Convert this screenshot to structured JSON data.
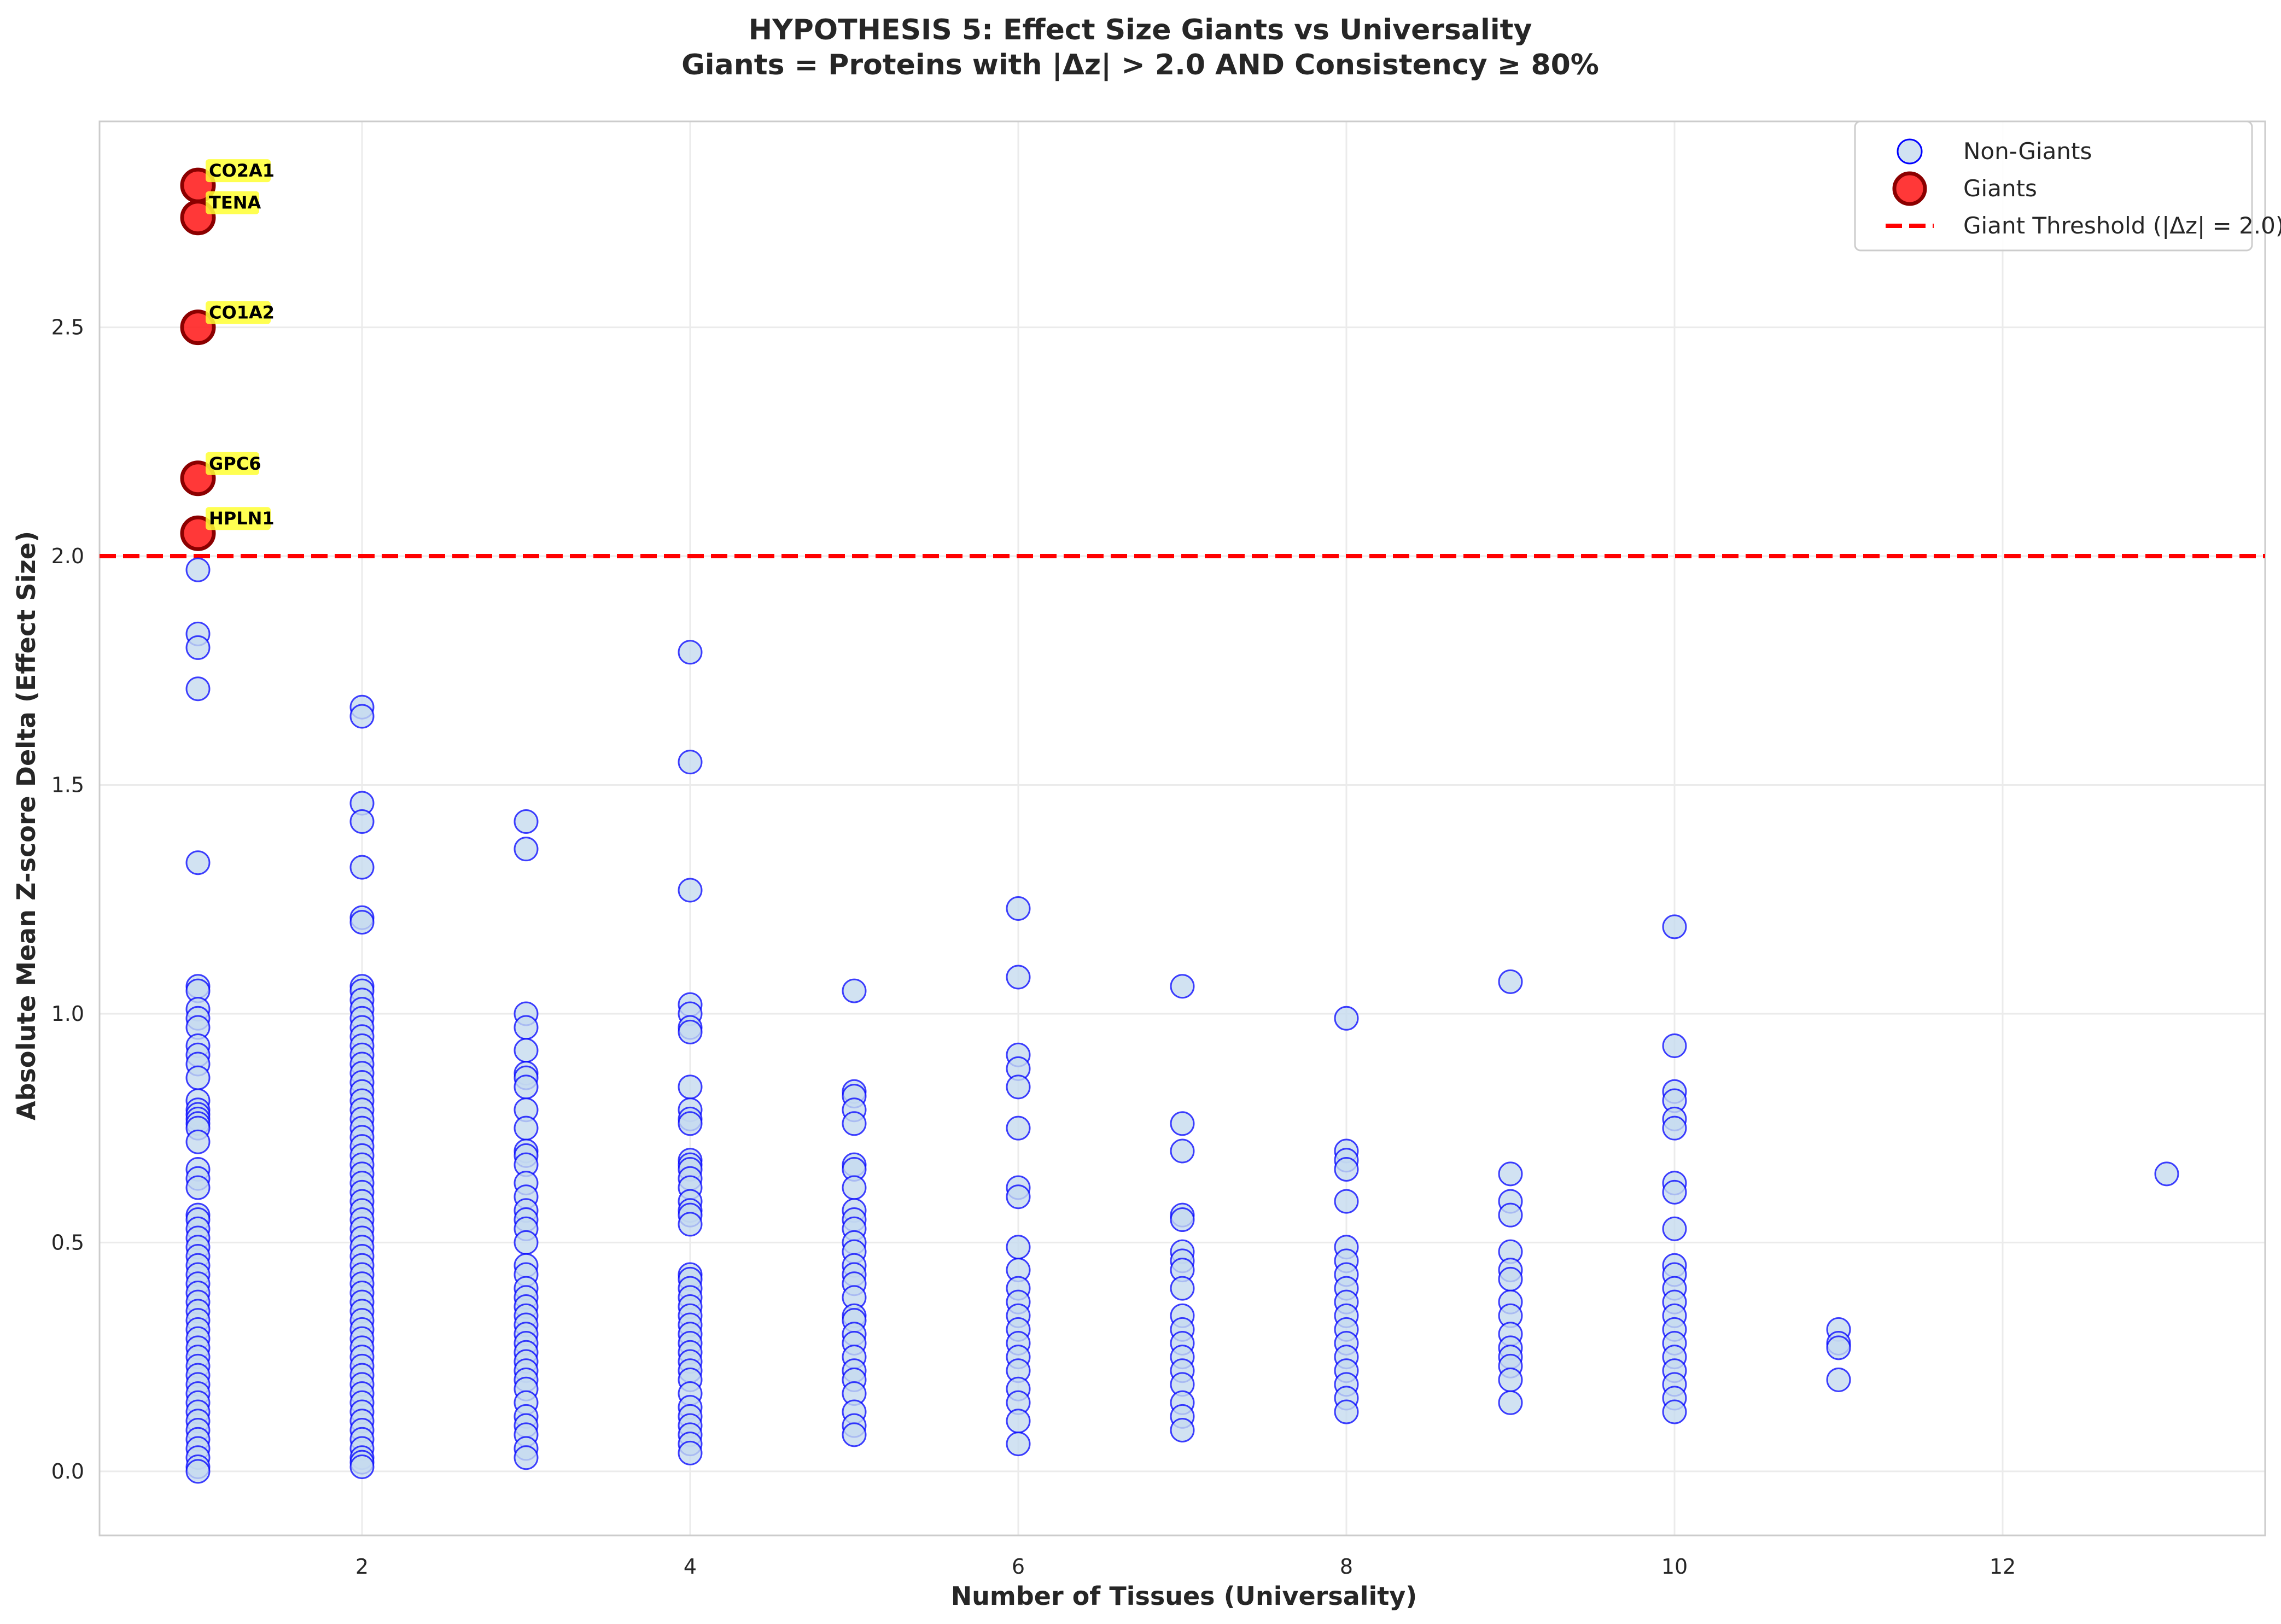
{
  "chart_data": {
    "type": "scatter",
    "title_line1": "HYPOTHESIS 5: Effect Size Giants vs Universality",
    "title_line2": "Giants = Proteins with |Δz| > 2.0 AND Consistency ≥ 80%",
    "xlabel": "Number of Tissues (Universality)",
    "ylabel": "Absolute Mean Z-score Delta (Effect Size)",
    "xlim": [
      0.4,
      13.6
    ],
    "ylim": [
      -0.14,
      2.95
    ],
    "x_ticks": [
      2,
      4,
      6,
      8,
      10,
      12
    ],
    "y_ticks": [
      0.0,
      0.5,
      1.0,
      1.5,
      2.0,
      2.5
    ],
    "y_tick_labels": [
      "0.0",
      "0.5",
      "1.0",
      "1.5",
      "2.0",
      "2.5"
    ],
    "grid": true,
    "legend_position": "top-right",
    "threshold": {
      "label": "Giant Threshold (|Δz| = 2.0)",
      "y": 2.0,
      "color": "#ff0000"
    },
    "series": [
      {
        "name": "Non-Giants",
        "face_color": "#c6dbef",
        "edge_color": "#0000ff",
        "points": {
          "1": [
            1.97,
            1.83,
            1.8,
            1.71,
            1.33,
            1.06,
            1.05,
            1.01,
            0.99,
            0.97,
            0.93,
            0.91,
            0.89,
            0.86,
            0.81,
            0.79,
            0.78,
            0.77,
            0.76,
            0.75,
            0.72,
            0.66,
            0.64,
            0.62,
            0.56,
            0.55,
            0.53,
            0.51,
            0.49,
            0.47,
            0.45,
            0.43,
            0.41,
            0.39,
            0.37,
            0.35,
            0.33,
            0.31,
            0.29,
            0.27,
            0.25,
            0.23,
            0.21,
            0.19,
            0.17,
            0.15,
            0.13,
            0.11,
            0.09,
            0.07,
            0.05,
            0.03,
            0.01,
            0.0
          ],
          "2": [
            1.67,
            1.65,
            1.46,
            1.42,
            1.32,
            1.21,
            1.2,
            1.06,
            1.05,
            1.03,
            1.01,
            0.99,
            0.97,
            0.95,
            0.93,
            0.91,
            0.89,
            0.87,
            0.85,
            0.83,
            0.81,
            0.79,
            0.77,
            0.75,
            0.73,
            0.71,
            0.69,
            0.67,
            0.65,
            0.63,
            0.61,
            0.59,
            0.57,
            0.55,
            0.53,
            0.51,
            0.49,
            0.47,
            0.45,
            0.43,
            0.41,
            0.39,
            0.37,
            0.35,
            0.33,
            0.31,
            0.29,
            0.27,
            0.25,
            0.23,
            0.21,
            0.19,
            0.17,
            0.15,
            0.13,
            0.11,
            0.09,
            0.07,
            0.05,
            0.03,
            0.02,
            0.01
          ],
          "3": [
            1.42,
            1.36,
            1.0,
            0.97,
            0.92,
            0.87,
            0.86,
            0.84,
            0.79,
            0.75,
            0.7,
            0.69,
            0.67,
            0.63,
            0.6,
            0.57,
            0.55,
            0.53,
            0.5,
            0.45,
            0.43,
            0.4,
            0.38,
            0.36,
            0.34,
            0.32,
            0.3,
            0.28,
            0.26,
            0.24,
            0.22,
            0.2,
            0.18,
            0.15,
            0.12,
            0.1,
            0.08,
            0.05,
            0.03
          ],
          "4": [
            1.79,
            1.55,
            1.27,
            1.02,
            1.0,
            0.97,
            0.96,
            0.84,
            0.79,
            0.77,
            0.76,
            0.68,
            0.67,
            0.66,
            0.64,
            0.62,
            0.59,
            0.57,
            0.56,
            0.54,
            0.43,
            0.42,
            0.4,
            0.38,
            0.36,
            0.34,
            0.32,
            0.3,
            0.28,
            0.26,
            0.24,
            0.22,
            0.2,
            0.17,
            0.14,
            0.12,
            0.1,
            0.08,
            0.06,
            0.04
          ],
          "5": [
            1.05,
            0.83,
            0.82,
            0.79,
            0.76,
            0.67,
            0.66,
            0.62,
            0.57,
            0.55,
            0.53,
            0.5,
            0.48,
            0.45,
            0.43,
            0.41,
            0.38,
            0.34,
            0.33,
            0.3,
            0.28,
            0.25,
            0.22,
            0.2,
            0.17,
            0.13,
            0.1,
            0.08
          ],
          "6": [
            1.23,
            1.08,
            0.91,
            0.88,
            0.84,
            0.75,
            0.62,
            0.6,
            0.49,
            0.44,
            0.4,
            0.37,
            0.34,
            0.31,
            0.28,
            0.25,
            0.22,
            0.18,
            0.15,
            0.11,
            0.06
          ],
          "7": [
            1.06,
            0.76,
            0.7,
            0.56,
            0.55,
            0.48,
            0.46,
            0.44,
            0.4,
            0.34,
            0.31,
            0.28,
            0.25,
            0.22,
            0.19,
            0.15,
            0.12,
            0.09
          ],
          "8": [
            0.99,
            0.7,
            0.68,
            0.66,
            0.59,
            0.49,
            0.46,
            0.43,
            0.4,
            0.37,
            0.34,
            0.31,
            0.28,
            0.25,
            0.22,
            0.19,
            0.16,
            0.13
          ],
          "9": [
            1.07,
            0.65,
            0.59,
            0.56,
            0.48,
            0.44,
            0.42,
            0.37,
            0.34,
            0.3,
            0.27,
            0.25,
            0.23,
            0.2,
            0.15
          ],
          "10": [
            1.19,
            0.93,
            0.83,
            0.81,
            0.77,
            0.75,
            0.63,
            0.61,
            0.53,
            0.45,
            0.43,
            0.4,
            0.37,
            0.34,
            0.31,
            0.28,
            0.25,
            0.22,
            0.19,
            0.16,
            0.13
          ],
          "11": [
            0.31,
            0.28,
            0.27,
            0.2
          ],
          "13": [
            0.65
          ]
        }
      },
      {
        "name": "Giants",
        "face_color": "#ff2222",
        "edge_color": "#8b0000",
        "points": [
          {
            "x": 1,
            "y": 2.81,
            "label": "CO2A1"
          },
          {
            "x": 1,
            "y": 2.74,
            "label": "TENA"
          },
          {
            "x": 1,
            "y": 2.5,
            "label": "CO1A2"
          },
          {
            "x": 1,
            "y": 2.17,
            "label": "GPC6"
          },
          {
            "x": 1,
            "y": 2.05,
            "label": "HPLN1"
          }
        ]
      }
    ],
    "annotation_color": "#ffff33"
  }
}
